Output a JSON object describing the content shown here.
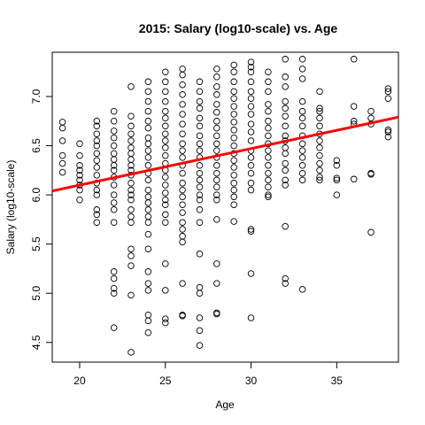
{
  "chart_data": {
    "type": "scatter",
    "title": "2015: Salary (log10-scale) vs. Age",
    "xlabel": "Age",
    "ylabel": "Salary (log10-scale)",
    "xlim": [
      18.4,
      38.6
    ],
    "ylim": [
      4.3,
      7.45
    ],
    "xticks": [
      20,
      25,
      30,
      35
    ],
    "yticks": [
      4.5,
      5.0,
      5.5,
      6.0,
      6.5,
      7.0
    ],
    "ytick_labels": [
      "4.5",
      "5.0",
      "5.5",
      "6.0",
      "6.5",
      "7.0"
    ],
    "grid": false,
    "point_style": "open-circle",
    "colors": {
      "points": "#000000",
      "fit_line": "#ff0000"
    },
    "fit_line": {
      "x0": 18.4,
      "y0": 6.04,
      "x1": 38.6,
      "y1": 6.79
    },
    "points": [
      [
        19,
        6.74
      ],
      [
        19,
        6.68
      ],
      [
        19,
        6.55
      ],
      [
        19,
        6.4
      ],
      [
        19,
        6.32
      ],
      [
        19,
        6.23
      ],
      [
        20,
        6.52
      ],
      [
        20,
        6.4
      ],
      [
        20,
        6.3
      ],
      [
        20,
        6.25
      ],
      [
        20,
        6.2
      ],
      [
        20,
        6.15
      ],
      [
        20,
        6.1
      ],
      [
        20,
        6.05
      ],
      [
        20,
        5.95
      ],
      [
        21,
        6.75
      ],
      [
        21,
        6.7
      ],
      [
        21,
        6.62
      ],
      [
        21,
        6.55
      ],
      [
        21,
        6.5
      ],
      [
        21,
        6.42
      ],
      [
        21,
        6.35
      ],
      [
        21,
        6.28
      ],
      [
        21,
        6.2
      ],
      [
        21,
        6.12
      ],
      [
        21,
        6.05
      ],
      [
        21,
        6.0
      ],
      [
        21,
        5.85
      ],
      [
        21,
        5.8
      ],
      [
        21,
        5.72
      ],
      [
        22,
        6.85
      ],
      [
        22,
        6.75
      ],
      [
        22,
        6.65
      ],
      [
        22,
        6.58
      ],
      [
        22,
        6.5
      ],
      [
        22,
        6.42
      ],
      [
        22,
        6.36
      ],
      [
        22,
        6.3
      ],
      [
        22,
        6.25
      ],
      [
        22,
        6.18
      ],
      [
        22,
        6.1
      ],
      [
        22,
        6.0
      ],
      [
        22,
        5.92
      ],
      [
        22,
        5.85
      ],
      [
        22,
        5.72
      ],
      [
        22,
        5.22
      ],
      [
        22,
        5.15
      ],
      [
        22,
        5.05
      ],
      [
        22,
        5.0
      ],
      [
        22,
        4.65
      ],
      [
        23,
        7.1
      ],
      [
        23,
        6.8
      ],
      [
        23,
        6.7
      ],
      [
        23,
        6.62
      ],
      [
        23,
        6.55
      ],
      [
        23,
        6.48
      ],
      [
        23,
        6.42
      ],
      [
        23,
        6.36
      ],
      [
        23,
        6.3
      ],
      [
        23,
        6.25
      ],
      [
        23,
        6.2
      ],
      [
        23,
        6.12
      ],
      [
        23,
        6.05
      ],
      [
        23,
        6.0
      ],
      [
        23,
        5.95
      ],
      [
        23,
        5.85
      ],
      [
        23,
        5.78
      ],
      [
        23,
        5.72
      ],
      [
        23,
        5.45
      ],
      [
        23,
        5.38
      ],
      [
        23,
        5.28
      ],
      [
        23,
        4.98
      ],
      [
        23,
        4.4
      ],
      [
        24,
        7.15
      ],
      [
        24,
        7.05
      ],
      [
        24,
        6.95
      ],
      [
        24,
        6.85
      ],
      [
        24,
        6.75
      ],
      [
        24,
        6.68
      ],
      [
        24,
        6.58
      ],
      [
        24,
        6.52
      ],
      [
        24,
        6.45
      ],
      [
        24,
        6.38
      ],
      [
        24,
        6.3
      ],
      [
        24,
        6.22
      ],
      [
        24,
        6.15
      ],
      [
        24,
        6.05
      ],
      [
        24,
        5.98
      ],
      [
        24,
        5.92
      ],
      [
        24,
        5.85
      ],
      [
        24,
        5.78
      ],
      [
        24,
        5.72
      ],
      [
        24,
        5.6
      ],
      [
        24,
        5.45
      ],
      [
        24,
        5.22
      ],
      [
        24,
        5.1
      ],
      [
        24,
        5.03
      ],
      [
        24,
        4.78
      ],
      [
        24,
        4.72
      ],
      [
        24,
        4.6
      ],
      [
        25,
        7.25
      ],
      [
        25,
        7.15
      ],
      [
        25,
        7.05
      ],
      [
        25,
        6.95
      ],
      [
        25,
        6.85
      ],
      [
        25,
        6.78
      ],
      [
        25,
        6.7
      ],
      [
        25,
        6.62
      ],
      [
        25,
        6.55
      ],
      [
        25,
        6.48
      ],
      [
        25,
        6.4
      ],
      [
        25,
        6.32
      ],
      [
        25,
        6.25
      ],
      [
        25,
        6.18
      ],
      [
        25,
        6.1
      ],
      [
        25,
        6.02
      ],
      [
        25,
        5.95
      ],
      [
        25,
        5.9
      ],
      [
        25,
        5.8
      ],
      [
        25,
        5.72
      ],
      [
        25,
        5.3
      ],
      [
        25,
        5.03
      ],
      [
        25,
        4.74
      ],
      [
        25,
        4.7
      ],
      [
        26,
        7.28
      ],
      [
        26,
        7.22
      ],
      [
        26,
        7.12
      ],
      [
        26,
        7.02
      ],
      [
        26,
        6.92
      ],
      [
        26,
        6.82
      ],
      [
        26,
        6.72
      ],
      [
        26,
        6.62
      ],
      [
        26,
        6.52
      ],
      [
        26,
        6.45
      ],
      [
        26,
        6.38
      ],
      [
        26,
        6.3
      ],
      [
        26,
        6.22
      ],
      [
        26,
        6.12
      ],
      [
        26,
        6.05
      ],
      [
        26,
        5.98
      ],
      [
        26,
        5.9
      ],
      [
        26,
        5.82
      ],
      [
        26,
        5.72
      ],
      [
        26,
        5.65
      ],
      [
        26,
        5.58
      ],
      [
        26,
        5.52
      ],
      [
        26,
        5.1
      ],
      [
        26,
        4.78
      ],
      [
        26,
        4.77
      ],
      [
        27,
        7.15
      ],
      [
        27,
        7.05
      ],
      [
        27,
        6.95
      ],
      [
        27,
        6.88
      ],
      [
        27,
        6.78
      ],
      [
        27,
        6.7
      ],
      [
        27,
        6.6
      ],
      [
        27,
        6.52
      ],
      [
        27,
        6.45
      ],
      [
        27,
        6.38
      ],
      [
        27,
        6.3
      ],
      [
        27,
        6.22
      ],
      [
        27,
        6.15
      ],
      [
        27,
        6.08
      ],
      [
        27,
        6.0
      ],
      [
        27,
        5.95
      ],
      [
        27,
        5.85
      ],
      [
        27,
        5.72
      ],
      [
        27,
        5.4
      ],
      [
        27,
        5.06
      ],
      [
        27,
        5.0
      ],
      [
        27,
        4.75
      ],
      [
        27,
        4.62
      ],
      [
        27,
        4.47
      ],
      [
        28,
        7.28
      ],
      [
        28,
        7.2
      ],
      [
        28,
        7.1
      ],
      [
        28,
        7.02
      ],
      [
        28,
        6.92
      ],
      [
        28,
        6.84
      ],
      [
        28,
        6.75
      ],
      [
        28,
        6.68
      ],
      [
        28,
        6.6
      ],
      [
        28,
        6.52
      ],
      [
        28,
        6.45
      ],
      [
        28,
        6.38
      ],
      [
        28,
        6.3
      ],
      [
        28,
        6.22
      ],
      [
        28,
        6.15
      ],
      [
        28,
        6.08
      ],
      [
        28,
        6.0
      ],
      [
        28,
        5.95
      ],
      [
        28,
        5.75
      ],
      [
        28,
        5.3
      ],
      [
        28,
        5.1
      ],
      [
        28,
        4.8
      ],
      [
        28,
        4.79
      ],
      [
        29,
        7.32
      ],
      [
        29,
        7.25
      ],
      [
        29,
        7.15
      ],
      [
        29,
        7.05
      ],
      [
        29,
        6.98
      ],
      [
        29,
        6.9
      ],
      [
        29,
        6.82
      ],
      [
        29,
        6.74
      ],
      [
        29,
        6.66
      ],
      [
        29,
        6.58
      ],
      [
        29,
        6.5
      ],
      [
        29,
        6.42
      ],
      [
        29,
        6.35
      ],
      [
        29,
        6.28
      ],
      [
        29,
        6.2
      ],
      [
        29,
        6.12
      ],
      [
        29,
        6.05
      ],
      [
        29,
        5.98
      ],
      [
        29,
        5.9
      ],
      [
        29,
        5.73
      ],
      [
        30,
        7.35
      ],
      [
        30,
        7.3
      ],
      [
        30,
        7.25
      ],
      [
        30,
        7.15
      ],
      [
        30,
        7.05
      ],
      [
        30,
        6.98
      ],
      [
        30,
        6.9
      ],
      [
        30,
        6.82
      ],
      [
        30,
        6.72
      ],
      [
        30,
        6.64
      ],
      [
        30,
        6.55
      ],
      [
        30,
        6.45
      ],
      [
        30,
        6.38
      ],
      [
        30,
        6.3
      ],
      [
        30,
        6.22
      ],
      [
        30,
        6.12
      ],
      [
        30,
        6.05
      ],
      [
        30,
        5.65
      ],
      [
        30,
        5.63
      ],
      [
        30,
        5.2
      ],
      [
        30,
        4.75
      ],
      [
        31,
        7.25
      ],
      [
        31,
        7.15
      ],
      [
        31,
        7.05
      ],
      [
        31,
        6.92
      ],
      [
        31,
        6.85
      ],
      [
        31,
        6.75
      ],
      [
        31,
        6.68
      ],
      [
        31,
        6.6
      ],
      [
        31,
        6.52
      ],
      [
        31,
        6.45
      ],
      [
        31,
        6.38
      ],
      [
        31,
        6.3
      ],
      [
        31,
        6.22
      ],
      [
        31,
        6.15
      ],
      [
        31,
        6.08
      ],
      [
        31,
        6.0
      ],
      [
        31,
        5.98
      ],
      [
        32,
        7.38
      ],
      [
        32,
        7.2
      ],
      [
        32,
        7.1
      ],
      [
        32,
        6.95
      ],
      [
        32,
        6.88
      ],
      [
        32,
        6.8
      ],
      [
        32,
        6.7
      ],
      [
        32,
        6.6
      ],
      [
        32,
        6.55
      ],
      [
        32,
        6.48
      ],
      [
        32,
        6.42
      ],
      [
        32,
        6.32
      ],
      [
        32,
        6.25
      ],
      [
        32,
        6.15
      ],
      [
        32,
        6.1
      ],
      [
        32,
        5.68
      ],
      [
        32,
        5.15
      ],
      [
        32,
        5.1
      ],
      [
        33,
        7.38
      ],
      [
        33,
        7.28
      ],
      [
        33,
        7.18
      ],
      [
        33,
        6.95
      ],
      [
        33,
        6.85
      ],
      [
        33,
        6.78
      ],
      [
        33,
        6.7
      ],
      [
        33,
        6.6
      ],
      [
        33,
        6.52
      ],
      [
        33,
        6.45
      ],
      [
        33,
        6.38
      ],
      [
        33,
        6.3
      ],
      [
        33,
        6.22
      ],
      [
        33,
        6.15
      ],
      [
        33,
        5.04
      ],
      [
        34,
        7.05
      ],
      [
        34,
        6.88
      ],
      [
        34,
        6.85
      ],
      [
        34,
        6.78
      ],
      [
        34,
        6.7
      ],
      [
        34,
        6.62
      ],
      [
        34,
        6.55
      ],
      [
        34,
        6.48
      ],
      [
        34,
        6.4
      ],
      [
        34,
        6.32
      ],
      [
        34,
        6.25
      ],
      [
        34,
        6.18
      ],
      [
        34,
        6.15
      ],
      [
        35,
        6.35
      ],
      [
        35,
        6.3
      ],
      [
        35,
        6.17
      ],
      [
        35,
        6.15
      ],
      [
        35,
        6.0
      ],
      [
        36,
        7.38
      ],
      [
        36,
        6.9
      ],
      [
        36,
        6.75
      ],
      [
        36,
        6.72
      ],
      [
        36,
        6.16
      ],
      [
        37,
        6.85
      ],
      [
        37,
        6.78
      ],
      [
        37,
        6.72
      ],
      [
        37,
        6.22
      ],
      [
        37,
        6.21
      ],
      [
        37,
        5.62
      ],
      [
        38,
        7.08
      ],
      [
        38,
        7.05
      ],
      [
        38,
        6.98
      ],
      [
        38,
        6.66
      ],
      [
        38,
        6.64
      ],
      [
        38,
        6.59
      ]
    ]
  }
}
